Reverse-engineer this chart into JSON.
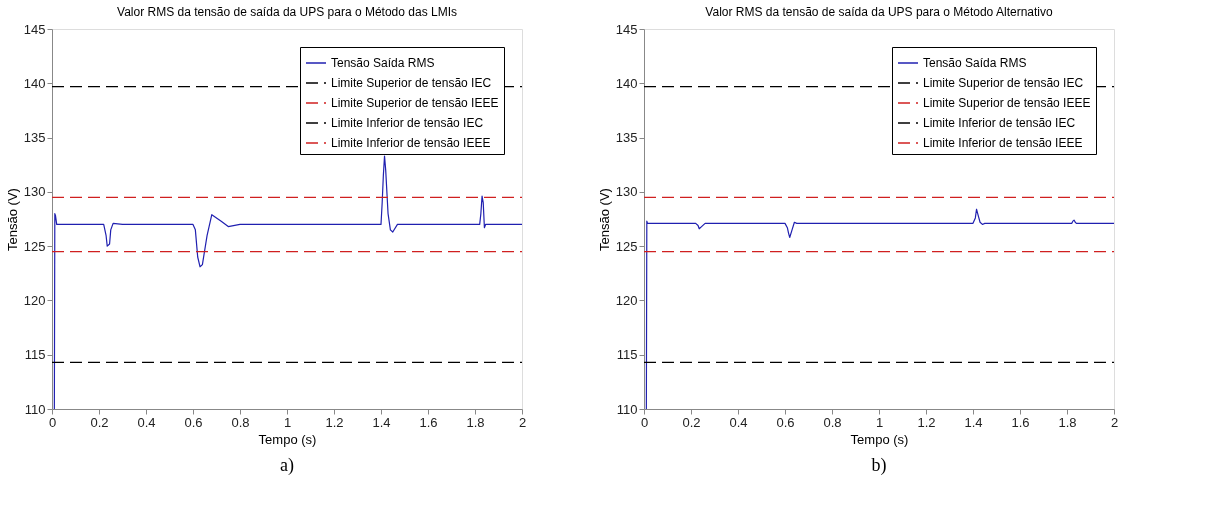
{
  "chart_data": [
    {
      "type": "line",
      "title": "Valor RMS da tensão de saída da UPS para o Método das LMIs",
      "xlabel": "Tempo (s)",
      "ylabel": "Tensão (V)",
      "annotations": [
        "a)"
      ],
      "xlim": [
        0,
        2
      ],
      "ylim": [
        110,
        145
      ],
      "xticks": [
        0,
        0.2,
        0.4,
        0.6,
        0.8,
        1,
        1.2,
        1.4,
        1.6,
        1.8,
        2
      ],
      "yticks": [
        110,
        115,
        120,
        125,
        130,
        135,
        140,
        145
      ],
      "grid": false,
      "legend": "top right",
      "line_style": "solid",
      "series": [
        {
          "name": "Tensão Saída RMS",
          "color": "#2020b0",
          "x": [
            0.01,
            0.012,
            0.015,
            0.02,
            0.1,
            0.22,
            0.23,
            0.235,
            0.245,
            0.25,
            0.26,
            0.3,
            0.5,
            0.6,
            0.61,
            0.62,
            0.63,
            0.64,
            0.66,
            0.68,
            0.72,
            0.75,
            0.8,
            1.0,
            1.2,
            1.4,
            1.405,
            1.41,
            1.415,
            1.42,
            1.43,
            1.44,
            1.45,
            1.47,
            1.5,
            1.6,
            1.82,
            1.825,
            1.83,
            1.835,
            1.84,
            1.845,
            1.9,
            2.0
          ],
          "values": [
            110,
            128,
            127.8,
            127,
            127,
            127,
            126,
            125,
            125.2,
            126.5,
            127.1,
            127,
            127,
            127,
            126.5,
            124,
            123.1,
            123.3,
            126,
            127.9,
            127.3,
            126.8,
            127,
            127,
            127,
            127,
            129,
            131.5,
            133.3,
            132,
            128,
            126.5,
            126.3,
            127,
            127,
            127,
            127,
            128,
            129.6,
            129,
            126.7,
            127,
            127,
            127
          ]
        },
        {
          "name": "Limite Superior de tensão IEC",
          "color": "#000000",
          "line_style": "dashed",
          "x": [
            0,
            2
          ],
          "values": [
            139.7,
            139.7
          ]
        },
        {
          "name": "Limite Superior de tensão IEEE",
          "color": "#d02020",
          "line_style": "dashed",
          "x": [
            0,
            2
          ],
          "values": [
            129.5,
            129.5
          ]
        },
        {
          "name": "Limite Inferior de tensão IEC",
          "color": "#000000",
          "line_style": "dashed",
          "x": [
            0,
            2
          ],
          "values": [
            114.3,
            114.3
          ]
        },
        {
          "name": "Limite Inferior de tensão IEEE",
          "color": "#d02020",
          "line_style": "dashed",
          "x": [
            0,
            2
          ],
          "values": [
            124.5,
            124.5
          ]
        }
      ]
    },
    {
      "type": "line",
      "title": "Valor RMS da tensão de saída da UPS para o Método Alternativo",
      "xlabel": "Tempo (s)",
      "ylabel": "Tensão (V)",
      "annotations": [
        "b)"
      ],
      "xlim": [
        0,
        2
      ],
      "ylim": [
        110,
        145
      ],
      "xticks": [
        0,
        0.2,
        0.4,
        0.6,
        0.8,
        1,
        1.2,
        1.4,
        1.6,
        1.8,
        2
      ],
      "yticks": [
        110,
        115,
        120,
        125,
        130,
        135,
        140,
        145
      ],
      "grid": false,
      "legend": "top right",
      "line_style": "solid",
      "series": [
        {
          "name": "Tensão Saída RMS",
          "color": "#2020b0",
          "x": [
            0.01,
            0.012,
            0.015,
            0.1,
            0.22,
            0.23,
            0.235,
            0.245,
            0.26,
            0.5,
            0.6,
            0.61,
            0.615,
            0.62,
            0.63,
            0.64,
            0.65,
            0.8,
            1.2,
            1.4,
            1.41,
            1.415,
            1.42,
            1.43,
            1.44,
            1.45,
            1.6,
            1.82,
            1.825,
            1.83,
            1.835,
            1.84,
            2.0
          ],
          "values": [
            110,
            127.3,
            127.1,
            127.1,
            127.1,
            126.9,
            126.6,
            126.8,
            127.1,
            127.1,
            127.1,
            126.7,
            126.2,
            125.8,
            126.5,
            127.2,
            127.1,
            127.1,
            127.1,
            127.1,
            127.6,
            128.4,
            128.0,
            127.2,
            127.0,
            127.1,
            127.1,
            127.1,
            127.3,
            127.4,
            127.2,
            127.1,
            127.1
          ]
        },
        {
          "name": "Limite Superior de tensão IEC",
          "color": "#000000",
          "line_style": "dashed",
          "x": [
            0,
            2
          ],
          "values": [
            139.7,
            139.7
          ]
        },
        {
          "name": "Limite Superior de tensão IEEE",
          "color": "#d02020",
          "line_style": "dashed",
          "x": [
            0,
            2
          ],
          "values": [
            129.5,
            129.5
          ]
        },
        {
          "name": "Limite Inferior de tensão IEC",
          "color": "#000000",
          "line_style": "dashed",
          "x": [
            0,
            2
          ],
          "values": [
            114.3,
            114.3
          ]
        },
        {
          "name": "Limite Inferior de tensão IEEE",
          "color": "#d02020",
          "line_style": "dashed",
          "x": [
            0,
            2
          ],
          "values": [
            124.5,
            124.5
          ]
        }
      ]
    }
  ]
}
